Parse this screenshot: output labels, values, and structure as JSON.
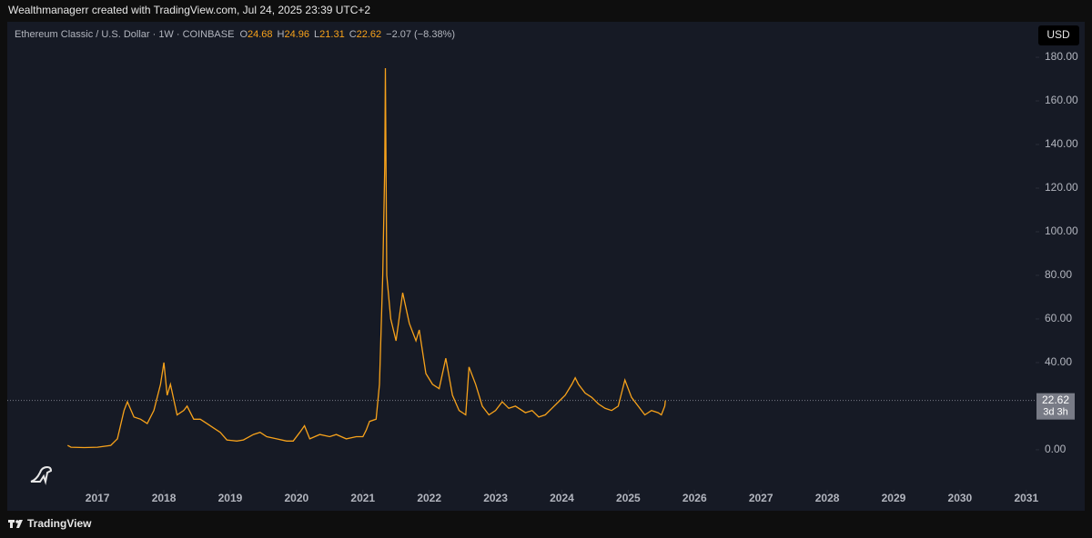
{
  "attribution": "Wealthmanagerr created with TradingView.com, Jul 24, 2025 23:39 UTC+2",
  "watermark": "TradingView",
  "chart_data": {
    "type": "line",
    "title": "Ethereum Classic / U.S. Dollar · 1W · COINBASE",
    "ohlc": [
      {
        "label": "O",
        "value": 24.68
      },
      {
        "label": "H",
        "value": 24.96
      },
      {
        "label": "L",
        "value": 21.31
      },
      {
        "label": "C",
        "value": 22.62
      }
    ],
    "change": "−2.07 (−8.38%)",
    "currency": "USD",
    "last_price": 22.62,
    "countdown": "3d 3h",
    "x": [
      2016.55,
      2016.6,
      2016.8,
      2017.0,
      2017.2,
      2017.3,
      2017.4,
      2017.45,
      2017.55,
      2017.65,
      2017.75,
      2017.85,
      2017.95,
      2018.0,
      2018.05,
      2018.1,
      2018.2,
      2018.3,
      2018.35,
      2018.45,
      2018.55,
      2018.65,
      2018.75,
      2018.85,
      2018.95,
      2019.1,
      2019.2,
      2019.35,
      2019.45,
      2019.55,
      2019.7,
      2019.85,
      2019.95,
      2020.05,
      2020.12,
      2020.2,
      2020.35,
      2020.5,
      2020.6,
      2020.75,
      2020.9,
      2021.0,
      2021.05,
      2021.1,
      2021.2,
      2021.25,
      2021.3,
      2021.33,
      2021.34,
      2021.36,
      2021.42,
      2021.5,
      2021.6,
      2021.7,
      2021.8,
      2021.85,
      2021.95,
      2022.05,
      2022.15,
      2022.25,
      2022.35,
      2022.45,
      2022.55,
      2022.6,
      2022.7,
      2022.8,
      2022.9,
      2023.0,
      2023.1,
      2023.2,
      2023.3,
      2023.45,
      2023.55,
      2023.65,
      2023.75,
      2023.85,
      2023.95,
      2024.05,
      2024.15,
      2024.2,
      2024.25,
      2024.35,
      2024.45,
      2024.55,
      2024.65,
      2024.75,
      2024.85,
      2024.95,
      2025.05,
      2025.15,
      2025.25,
      2025.35,
      2025.45,
      2025.5,
      2025.55,
      2025.56
    ],
    "series": [
      {
        "name": "ETC/USD",
        "color": "#f7a21b",
        "values": [
          2,
          1.2,
          1.0,
          1.2,
          2,
          5,
          18,
          22,
          15,
          14,
          12,
          18,
          30,
          40,
          25,
          30,
          16,
          18,
          20,
          14,
          14,
          12,
          10,
          8,
          4.5,
          4,
          4.5,
          7,
          8,
          6,
          5,
          4,
          4,
          8,
          11,
          5,
          7,
          6,
          7,
          5,
          6,
          6,
          9,
          13,
          14,
          30,
          80,
          130,
          175,
          80,
          60,
          50,
          72,
          58,
          50,
          55,
          35,
          30,
          28,
          42,
          25,
          18,
          16,
          38,
          30,
          20,
          16,
          18,
          22,
          19,
          20,
          17,
          18,
          15,
          16,
          19,
          22,
          25,
          30,
          33,
          30,
          26,
          24,
          21,
          19,
          18,
          20,
          32,
          24,
          20,
          16,
          18,
          17,
          16,
          20,
          22.62
        ]
      }
    ],
    "xlim": [
      2015.64,
      2031.14
    ],
    "ylim": [
      -16.7,
      189.6
    ],
    "xticks": [
      2017,
      2018,
      2019,
      2020,
      2021,
      2022,
      2023,
      2024,
      2025,
      2026,
      2027,
      2028,
      2029,
      2030,
      2031
    ],
    "yticks": [
      {
        "value": 0,
        "label": "0.00"
      },
      {
        "value": 40,
        "label": "40.00"
      },
      {
        "value": 60,
        "label": "60.00"
      },
      {
        "value": 80,
        "label": "80.00"
      },
      {
        "value": 100,
        "label": "100.00"
      },
      {
        "value": 120,
        "label": "120.00"
      },
      {
        "value": 140,
        "label": "140.00"
      },
      {
        "value": 160,
        "label": "160.00"
      },
      {
        "value": 180,
        "label": "180.00"
      }
    ]
  }
}
